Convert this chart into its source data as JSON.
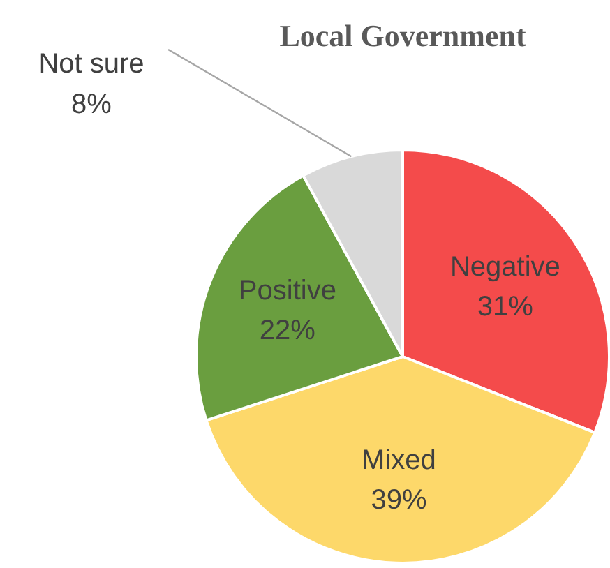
{
  "chart_data": {
    "type": "pie",
    "title": "Local Government",
    "categories": [
      "Negative",
      "Mixed",
      "Positive",
      "Not sure"
    ],
    "values": [
      31,
      39,
      22,
      8
    ],
    "colors": [
      "#f44b4b",
      "#fdd86a",
      "#6a9e3f",
      "#d9d9d9"
    ],
    "value_labels": [
      "31%",
      "39%",
      "22%",
      "8%"
    ]
  }
}
